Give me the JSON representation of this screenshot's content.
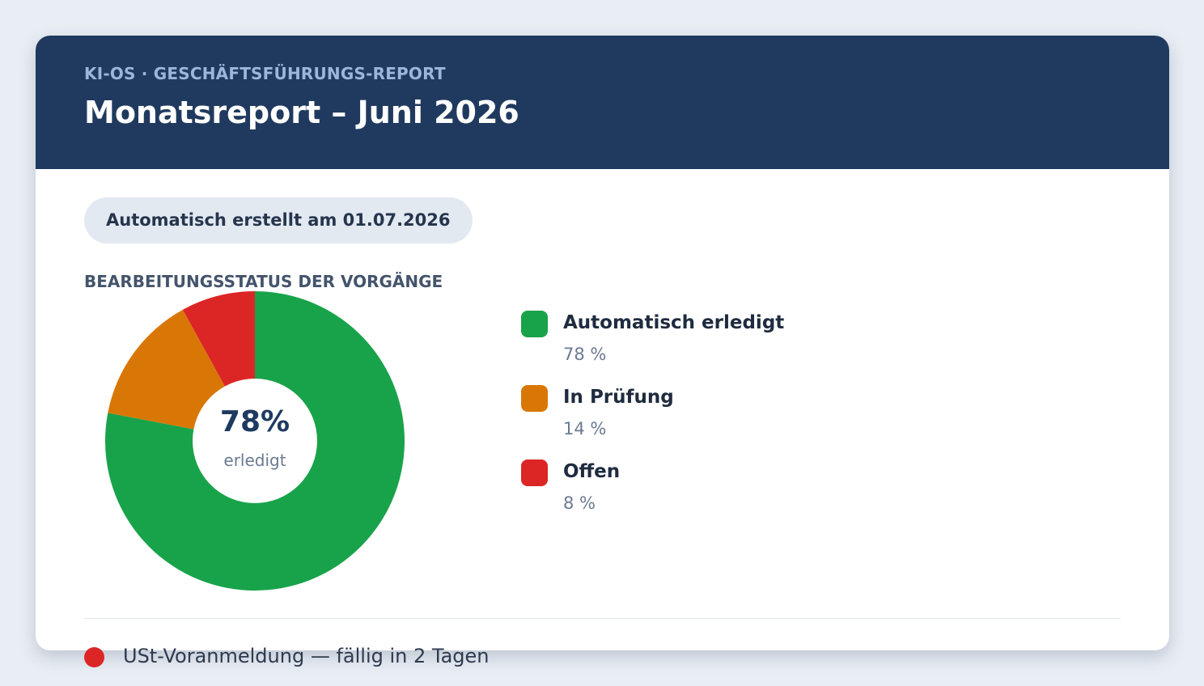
{
  "header": {
    "eyebrow": "KI-OS · GESCHÄFTSFÜHRUNGS-REPORT",
    "title": "Monatsreport – Juni 2026"
  },
  "badge": "Automatisch erstellt am 01.07.2026",
  "section_title": "BEARBEITUNGSSTATUS DER VORGÄNGE",
  "chart_data": {
    "type": "pie",
    "donut": true,
    "title": "BEARBEITUNGSSTATUS DER VORGÄNGE",
    "center_value": "78%",
    "center_label": "erledigt",
    "categories": [
      "Automatisch erledigt",
      "In Prüfung",
      "Offen"
    ],
    "values": [
      78,
      14,
      8
    ],
    "value_labels": [
      "78 %",
      "14 %",
      "8 %"
    ],
    "colors": [
      "#18a34a",
      "#d97706",
      "#dc2626"
    ],
    "legend_position": "right"
  },
  "task": {
    "text": "USt-Voranmeldung — fällig in 2 Tagen",
    "status_color": "#dc2626"
  }
}
